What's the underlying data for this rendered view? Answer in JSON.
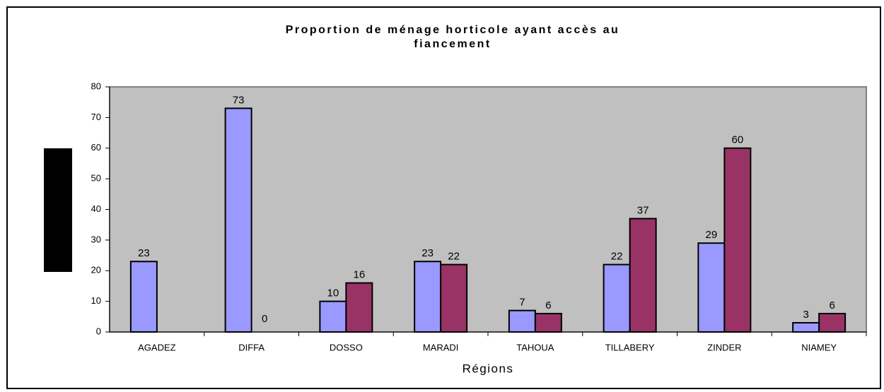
{
  "chart_data": {
    "type": "bar",
    "title": [
      "Proportion de ménage horticole ayant accès au",
      "fiancement"
    ],
    "xlabel": "Régions",
    "categories": [
      "AGADEZ",
      "DIFFA",
      "DOSSO",
      "MARADI",
      "TAHOUA",
      "TILLABERY",
      "ZINDER",
      "NIAMEY"
    ],
    "series": [
      {
        "color": "#9999ff",
        "values": [
          23,
          73,
          10,
          23,
          7,
          22,
          29,
          3
        ]
      },
      {
        "color": "#993366",
        "values": [
          null,
          0,
          16,
          22,
          6,
          37,
          60,
          6
        ]
      }
    ],
    "ylim": [
      0,
      80
    ],
    "yticks": [
      0,
      10,
      20,
      30,
      40,
      50,
      60,
      70,
      80
    ]
  }
}
